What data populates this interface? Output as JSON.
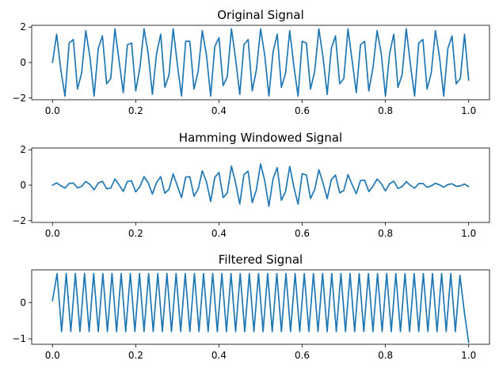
{
  "chart_data": [
    {
      "type": "line",
      "title": "Original Signal",
      "xlabel": "",
      "ylabel": "",
      "xlim": [
        -0.05,
        1.05
      ],
      "ylim": [
        -2.1,
        2.1
      ],
      "xticks": [
        0.0,
        0.2,
        0.4,
        0.6,
        0.8,
        1.0
      ],
      "xtick_labels": [
        "0.0",
        "0.2",
        "0.4",
        "0.6",
        "0.8",
        "1.0"
      ],
      "yticks": [
        -2,
        0,
        2
      ],
      "ytick_labels": [
        "−2",
        "0",
        "2"
      ],
      "grid": false,
      "color": "#1f77b4",
      "series": [
        {
          "x": [
            0.0,
            0.01,
            0.02,
            0.03,
            0.04,
            0.05,
            0.06,
            0.07,
            0.08,
            0.09,
            0.1,
            0.11,
            0.12,
            0.13,
            0.14,
            0.15,
            0.16,
            0.17,
            0.18,
            0.19,
            0.2,
            0.21,
            0.22,
            0.23,
            0.24,
            0.25,
            0.26,
            0.27,
            0.28,
            0.29,
            0.3,
            0.31,
            0.32,
            0.33,
            0.34,
            0.35,
            0.36,
            0.37,
            0.38,
            0.39,
            0.4,
            0.41,
            0.42,
            0.43,
            0.44,
            0.45,
            0.46,
            0.47,
            0.48,
            0.49,
            0.5,
            0.51,
            0.52,
            0.53,
            0.54,
            0.55,
            0.56,
            0.57,
            0.58,
            0.59,
            0.6,
            0.61,
            0.62,
            0.63,
            0.64,
            0.65,
            0.66,
            0.67,
            0.68,
            0.69,
            0.7,
            0.71,
            0.72,
            0.73,
            0.74,
            0.75,
            0.76,
            0.77,
            0.78,
            0.79,
            0.8,
            0.81,
            0.82,
            0.83,
            0.84,
            0.85,
            0.86,
            0.87,
            0.88,
            0.89,
            0.9,
            0.91,
            0.92,
            0.93,
            0.94,
            0.95,
            0.96,
            0.97,
            0.98,
            0.99,
            1.0
          ],
          "y": [
            0.0,
            1.6,
            -0.4,
            -1.9,
            1.1,
            1.3,
            -1.5,
            -0.6,
            1.8,
            0.3,
            -1.9,
            0.8,
            1.5,
            -1.2,
            -0.9,
            1.9,
            0.1,
            -1.7,
            1.0,
            1.1,
            -1.6,
            -0.3,
            1.9,
            0.5,
            -1.8,
            0.5,
            1.6,
            -1.4,
            -0.7,
            1.9,
            -0.1,
            -1.9,
            1.2,
            1.2,
            -1.5,
            -0.5,
            1.8,
            0.4,
            -1.9,
            0.9,
            1.4,
            -1.3,
            -0.8,
            1.9,
            0.2,
            -1.8,
            1.0,
            1.3,
            -1.6,
            -0.4,
            1.9,
            0.4,
            -1.9,
            0.6,
            1.6,
            -1.4,
            -0.6,
            1.8,
            -0.2,
            -1.9,
            1.2,
            1.1,
            -1.5,
            -0.5,
            1.9,
            0.3,
            -1.8,
            0.8,
            1.5,
            -1.2,
            -0.9,
            1.9,
            0.1,
            -1.7,
            1.0,
            1.2,
            -1.6,
            -0.3,
            1.8,
            0.5,
            -1.9,
            0.5,
            1.6,
            -1.4,
            -0.7,
            1.9,
            -0.1,
            -1.9,
            1.1,
            1.3,
            -1.5,
            -0.6,
            1.8,
            0.3,
            -1.9,
            0.8,
            1.5,
            -1.2,
            -0.9,
            1.6,
            -1.0
          ]
        }
      ]
    },
    {
      "type": "line",
      "title": "Hamming Windowed Signal",
      "xlabel": "",
      "ylabel": "",
      "xlim": [
        -0.05,
        1.05
      ],
      "ylim": [
        -2.1,
        2.1
      ],
      "xticks": [
        0.0,
        0.2,
        0.4,
        0.6,
        0.8,
        1.0
      ],
      "xtick_labels": [
        "0.0",
        "0.2",
        "0.4",
        "0.6",
        "0.8",
        "1.0"
      ],
      "yticks": [
        -2,
        0,
        2
      ],
      "ytick_labels": [
        "−2",
        "0",
        "2"
      ],
      "grid": false,
      "color": "#1f77b4",
      "series": [
        {
          "x": [
            0.0,
            0.01,
            0.02,
            0.03,
            0.04,
            0.05,
            0.06,
            0.07,
            0.08,
            0.09,
            0.1,
            0.11,
            0.12,
            0.13,
            0.14,
            0.15,
            0.16,
            0.17,
            0.18,
            0.19,
            0.2,
            0.21,
            0.22,
            0.23,
            0.24,
            0.25,
            0.26,
            0.27,
            0.28,
            0.29,
            0.3,
            0.31,
            0.32,
            0.33,
            0.34,
            0.35,
            0.36,
            0.37,
            0.38,
            0.39,
            0.4,
            0.41,
            0.42,
            0.43,
            0.44,
            0.45,
            0.46,
            0.47,
            0.48,
            0.49,
            0.5,
            0.51,
            0.52,
            0.53,
            0.54,
            0.55,
            0.56,
            0.57,
            0.58,
            0.59,
            0.6,
            0.61,
            0.62,
            0.63,
            0.64,
            0.65,
            0.66,
            0.67,
            0.68,
            0.69,
            0.7,
            0.71,
            0.72,
            0.73,
            0.74,
            0.75,
            0.76,
            0.77,
            0.78,
            0.79,
            0.8,
            0.81,
            0.82,
            0.83,
            0.84,
            0.85,
            0.86,
            0.87,
            0.88,
            0.89,
            0.9,
            0.91,
            0.92,
            0.93,
            0.94,
            0.95,
            0.96,
            0.97,
            0.98,
            0.99,
            1.0
          ],
          "y": [
            0.0,
            0.13,
            -0.03,
            -0.16,
            0.1,
            0.12,
            -0.15,
            -0.07,
            0.21,
            0.04,
            -0.26,
            0.12,
            0.23,
            -0.2,
            -0.16,
            0.35,
            0.02,
            -0.35,
            0.21,
            0.25,
            -0.38,
            -0.08,
            0.48,
            0.13,
            -0.5,
            0.15,
            0.48,
            -0.45,
            -0.23,
            0.64,
            -0.04,
            -0.7,
            0.46,
            0.48,
            -0.63,
            -0.22,
            0.81,
            0.19,
            -0.92,
            0.45,
            0.72,
            -0.7,
            -0.44,
            1.08,
            0.12,
            -1.06,
            0.6,
            0.79,
            -0.99,
            -0.25,
            1.2,
            0.25,
            -1.19,
            0.37,
            0.99,
            -0.85,
            -0.36,
            1.06,
            -0.11,
            -1.07,
            0.65,
            0.58,
            -0.75,
            -0.24,
            0.87,
            0.13,
            -0.76,
            0.32,
            0.57,
            -0.43,
            -0.3,
            0.6,
            0.03,
            -0.48,
            0.26,
            0.29,
            -0.36,
            -0.06,
            0.35,
            0.09,
            -0.32,
            0.08,
            0.23,
            -0.18,
            -0.08,
            0.2,
            -0.01,
            -0.17,
            0.09,
            0.1,
            -0.11,
            -0.04,
            0.11,
            0.02,
            -0.11,
            0.04,
            0.08,
            -0.06,
            -0.04,
            0.07,
            -0.08
          ]
        }
      ]
    },
    {
      "type": "line",
      "title": "Filtered Signal",
      "xlabel": "",
      "ylabel": "",
      "xlim": [
        -0.05,
        1.05
      ],
      "ylim": [
        -1.15,
        0.9
      ],
      "xticks": [
        0.0,
        0.2,
        0.4,
        0.6,
        0.8,
        1.0
      ],
      "xtick_labels": [
        "0.0",
        "0.2",
        "0.4",
        "0.6",
        "0.8",
        "1.0"
      ],
      "yticks": [
        -1,
        0
      ],
      "ytick_labels": [
        "−1",
        "0"
      ],
      "grid": false,
      "color": "#1f77b4",
      "series": [
        {
          "x": [
            0.0,
            0.011,
            0.022,
            0.033,
            0.044,
            0.055,
            0.066,
            0.077,
            0.088,
            0.099,
            0.11,
            0.121,
            0.132,
            0.143,
            0.154,
            0.165,
            0.176,
            0.187,
            0.198,
            0.209,
            0.22,
            0.231,
            0.242,
            0.253,
            0.264,
            0.275,
            0.286,
            0.297,
            0.308,
            0.319,
            0.33,
            0.341,
            0.352,
            0.363,
            0.374,
            0.385,
            0.396,
            0.407,
            0.418,
            0.429,
            0.44,
            0.451,
            0.462,
            0.473,
            0.484,
            0.495,
            0.506,
            0.517,
            0.528,
            0.539,
            0.55,
            0.561,
            0.572,
            0.583,
            0.594,
            0.605,
            0.616,
            0.627,
            0.638,
            0.649,
            0.66,
            0.671,
            0.682,
            0.693,
            0.704,
            0.715,
            0.726,
            0.737,
            0.748,
            0.759,
            0.77,
            0.781,
            0.792,
            0.803,
            0.814,
            0.825,
            0.836,
            0.847,
            0.858,
            0.869,
            0.88,
            0.891,
            0.902,
            0.913,
            0.924,
            0.935,
            0.946,
            0.957,
            0.968,
            0.979,
            0.99,
            1.0
          ],
          "y": [
            0.05,
            0.8,
            -0.8,
            0.8,
            -0.8,
            0.8,
            -0.8,
            0.8,
            -0.8,
            0.8,
            -0.8,
            0.8,
            -0.8,
            0.8,
            -0.8,
            0.8,
            -0.8,
            0.8,
            -0.8,
            0.8,
            -0.8,
            0.8,
            -0.8,
            0.8,
            -0.8,
            0.8,
            -0.8,
            0.8,
            -0.8,
            0.8,
            -0.8,
            0.8,
            -0.8,
            0.8,
            -0.8,
            0.8,
            -0.8,
            0.8,
            -0.8,
            0.8,
            -0.8,
            0.8,
            -0.8,
            0.8,
            -0.8,
            0.8,
            -0.8,
            0.8,
            -0.8,
            0.8,
            -0.8,
            0.8,
            -0.8,
            0.8,
            -0.8,
            0.8,
            -0.8,
            0.8,
            -0.8,
            0.8,
            -0.8,
            0.8,
            -0.8,
            0.8,
            -0.8,
            0.8,
            -0.8,
            0.8,
            -0.8,
            0.8,
            -0.8,
            0.8,
            -0.8,
            0.8,
            -0.8,
            0.8,
            -0.8,
            0.8,
            -0.8,
            0.8,
            -0.8,
            0.8,
            -0.8,
            0.8,
            -0.8,
            0.8,
            -0.8,
            0.8,
            -0.8,
            0.75,
            -0.3,
            -1.1
          ]
        }
      ]
    }
  ]
}
